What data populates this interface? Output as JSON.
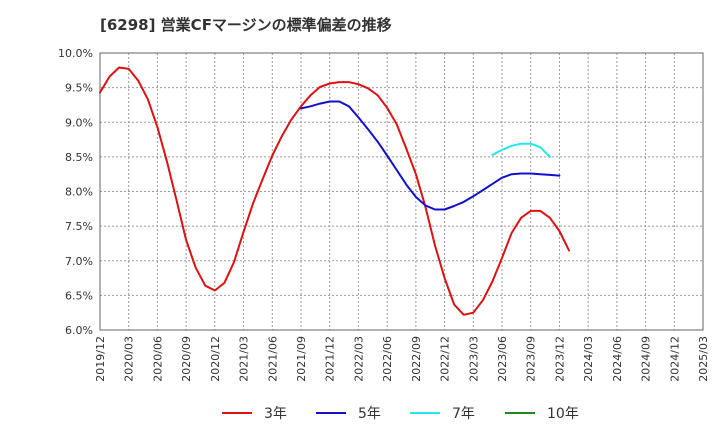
{
  "chart_data": {
    "type": "line",
    "title": "[6298]  営業CFマージンの標準偏差の推移",
    "xlabel": "",
    "ylabel": "",
    "ylim": [
      6.0,
      10.0
    ],
    "y_ticks": [
      "6.0%",
      "6.5%",
      "7.0%",
      "7.5%",
      "8.0%",
      "8.5%",
      "9.0%",
      "9.5%",
      "10.0%"
    ],
    "x_ticks": [
      "2019/12",
      "2020/03",
      "2020/06",
      "2020/09",
      "2020/12",
      "2021/03",
      "2021/06",
      "2021/09",
      "2021/12",
      "2022/03",
      "2022/06",
      "2022/09",
      "2022/12",
      "2023/03",
      "2023/06",
      "2023/09",
      "2023/12",
      "2024/03",
      "2024/06",
      "2024/09",
      "2024/12",
      "2025/03"
    ],
    "grid": true,
    "legend_position": "bottom",
    "series": [
      {
        "name": "3年",
        "color": "#dd1111",
        "points": [
          [
            "2019/12",
            9.43
          ],
          [
            "2020/01",
            9.66
          ],
          [
            "2020/02",
            9.79
          ],
          [
            "2020/03",
            9.77
          ],
          [
            "2020/04",
            9.6
          ],
          [
            "2020/05",
            9.33
          ],
          [
            "2020/06",
            8.93
          ],
          [
            "2020/07",
            8.43
          ],
          [
            "2020/08",
            7.87
          ],
          [
            "2020/09",
            7.3
          ],
          [
            "2020/10",
            6.9
          ],
          [
            "2020/11",
            6.64
          ],
          [
            "2020/12",
            6.57
          ],
          [
            "2021/01",
            6.68
          ],
          [
            "2021/02",
            6.98
          ],
          [
            "2021/03",
            7.42
          ],
          [
            "2021/04",
            7.83
          ],
          [
            "2021/05",
            8.18
          ],
          [
            "2021/06",
            8.52
          ],
          [
            "2021/07",
            8.8
          ],
          [
            "2021/08",
            9.04
          ],
          [
            "2021/09",
            9.23
          ],
          [
            "2021/10",
            9.39
          ],
          [
            "2021/11",
            9.51
          ],
          [
            "2021/12",
            9.56
          ],
          [
            "2022/01",
            9.58
          ],
          [
            "2022/02",
            9.58
          ],
          [
            "2022/03",
            9.55
          ],
          [
            "2022/04",
            9.49
          ],
          [
            "2022/05",
            9.39
          ],
          [
            "2022/06",
            9.21
          ],
          [
            "2022/07",
            8.97
          ],
          [
            "2022/08",
            8.62
          ],
          [
            "2022/09",
            8.25
          ],
          [
            "2022/10",
            7.78
          ],
          [
            "2022/11",
            7.22
          ],
          [
            "2022/12",
            6.75
          ],
          [
            "2023/01",
            6.37
          ],
          [
            "2023/02",
            6.22
          ],
          [
            "2023/03",
            6.25
          ],
          [
            "2023/04",
            6.43
          ],
          [
            "2023/05",
            6.7
          ],
          [
            "2023/06",
            7.04
          ],
          [
            "2023/07",
            7.4
          ],
          [
            "2023/08",
            7.62
          ],
          [
            "2023/09",
            7.72
          ],
          [
            "2023/10",
            7.72
          ],
          [
            "2023/11",
            7.62
          ],
          [
            "2023/12",
            7.43
          ],
          [
            "2024/01",
            7.15
          ]
        ]
      },
      {
        "name": "5年",
        "color": "#1111cc",
        "points": [
          [
            "2021/09",
            9.2
          ],
          [
            "2021/10",
            9.23
          ],
          [
            "2021/11",
            9.27
          ],
          [
            "2021/12",
            9.3
          ],
          [
            "2022/01",
            9.3
          ],
          [
            "2022/02",
            9.23
          ],
          [
            "2022/03",
            9.07
          ],
          [
            "2022/04",
            8.9
          ],
          [
            "2022/05",
            8.72
          ],
          [
            "2022/06",
            8.52
          ],
          [
            "2022/07",
            8.31
          ],
          [
            "2022/08",
            8.1
          ],
          [
            "2022/09",
            7.92
          ],
          [
            "2022/10",
            7.8
          ],
          [
            "2022/11",
            7.74
          ],
          [
            "2022/12",
            7.74
          ],
          [
            "2023/01",
            7.79
          ],
          [
            "2023/02",
            7.85
          ],
          [
            "2023/03",
            7.93
          ],
          [
            "2023/04",
            8.02
          ],
          [
            "2023/05",
            8.11
          ],
          [
            "2023/06",
            8.2
          ],
          [
            "2023/07",
            8.25
          ],
          [
            "2023/08",
            8.26
          ],
          [
            "2023/09",
            8.26
          ],
          [
            "2023/10",
            8.25
          ],
          [
            "2023/11",
            8.24
          ],
          [
            "2023/12",
            8.23
          ]
        ]
      },
      {
        "name": "7年",
        "color": "#22e6f0",
        "points": [
          [
            "2023/05",
            8.53
          ],
          [
            "2023/06",
            8.6
          ],
          [
            "2023/07",
            8.66
          ],
          [
            "2023/08",
            8.69
          ],
          [
            "2023/09",
            8.69
          ],
          [
            "2023/10",
            8.64
          ],
          [
            "2023/11",
            8.5
          ]
        ]
      },
      {
        "name": "10年",
        "color": "#228822",
        "points": []
      }
    ]
  }
}
